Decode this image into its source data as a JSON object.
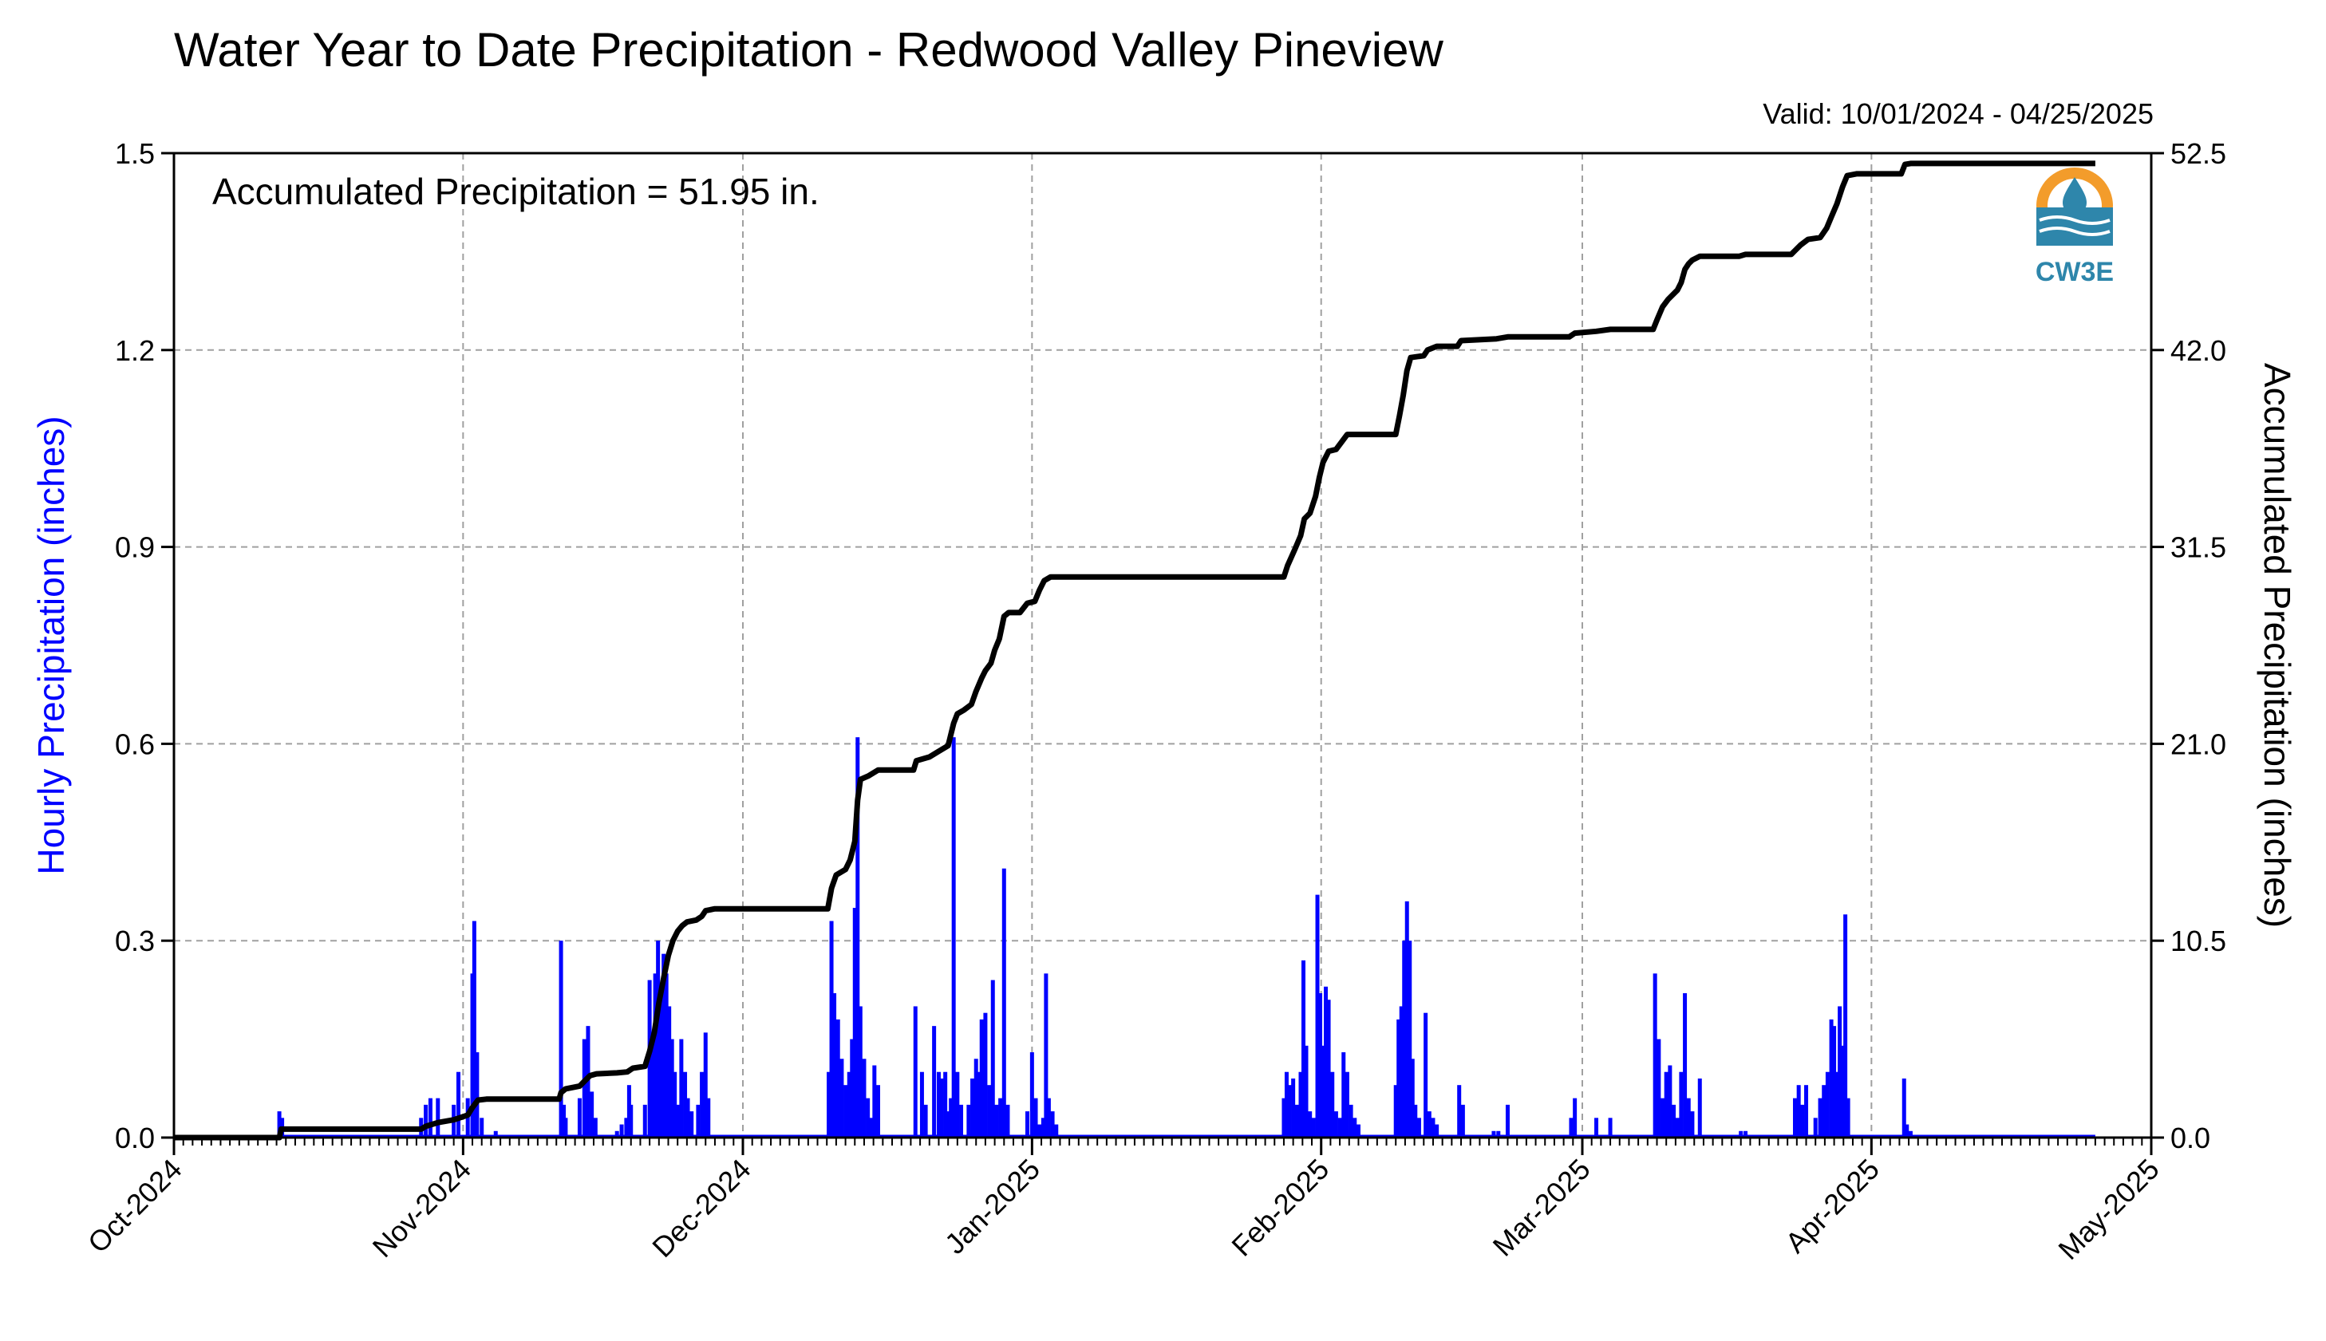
{
  "chart_data": {
    "type": "bar",
    "title": "Water Year to Date Precipitation - Redwood Valley Pineview",
    "valid_text": "Valid: 10/01/2024 - 04/25/2025",
    "annotation": "Accumulated Precipitation = 51.95 in.",
    "logo_text": "CW3E",
    "xlabel": "",
    "ylabel_left": "Hourly Precipitation (inches)",
    "ylabel_right": "Accumulated Precipitation (inches)",
    "x_range_days": [
      0,
      212
    ],
    "x_ticks": [
      {
        "day": 0,
        "label": "Oct-2024"
      },
      {
        "day": 31,
        "label": "Nov-2024"
      },
      {
        "day": 61,
        "label": "Dec-2024"
      },
      {
        "day": 92,
        "label": "Jan-2025"
      },
      {
        "day": 123,
        "label": "Feb-2025"
      },
      {
        "day": 151,
        "label": "Mar-2025"
      },
      {
        "day": 182,
        "label": "Apr-2025"
      },
      {
        "day": 212,
        "label": "May-2025"
      }
    ],
    "ylim_left": [
      0,
      1.5
    ],
    "yticks_left": [
      "0.0",
      "0.3",
      "0.6",
      "0.9",
      "1.2",
      "1.5"
    ],
    "ylim_right": [
      0,
      52.5
    ],
    "yticks_right": [
      "0.0",
      "10.5",
      "21.0",
      "31.5",
      "42.0",
      "52.5"
    ],
    "grid": true,
    "colors": {
      "hourly": "#0000ff",
      "accumulated": "#000000",
      "grid": "#a0a0a0",
      "left_label": "#0000ff",
      "logo_orange": "#f39c2b",
      "logo_blue": "#2e86ab"
    },
    "series": [
      {
        "name": "Hourly Precipitation",
        "kind": "bar",
        "points": [
          [
            11.3,
            0.04
          ],
          [
            11.6,
            0.03
          ],
          [
            26.5,
            0.03
          ],
          [
            27.0,
            0.05
          ],
          [
            27.5,
            0.06
          ],
          [
            28.3,
            0.06
          ],
          [
            30.0,
            0.05
          ],
          [
            30.5,
            0.1
          ],
          [
            31.5,
            0.06
          ],
          [
            32.0,
            0.25
          ],
          [
            32.2,
            0.33
          ],
          [
            32.5,
            0.13
          ],
          [
            33.0,
            0.03
          ],
          [
            34.5,
            0.01
          ],
          [
            41.5,
            0.3
          ],
          [
            41.8,
            0.05
          ],
          [
            42.0,
            0.03
          ],
          [
            43.5,
            0.06
          ],
          [
            44.0,
            0.15
          ],
          [
            44.4,
            0.17
          ],
          [
            44.8,
            0.07
          ],
          [
            45.2,
            0.03
          ],
          [
            47.5,
            0.01
          ],
          [
            48.0,
            0.02
          ],
          [
            48.5,
            0.03
          ],
          [
            48.8,
            0.08
          ],
          [
            49.0,
            0.05
          ],
          [
            50.5,
            0.05
          ],
          [
            51.0,
            0.24
          ],
          [
            51.3,
            0.15
          ],
          [
            51.6,
            0.25
          ],
          [
            51.9,
            0.3
          ],
          [
            52.2,
            0.22
          ],
          [
            52.5,
            0.28
          ],
          [
            52.8,
            0.25
          ],
          [
            53.1,
            0.2
          ],
          [
            53.4,
            0.15
          ],
          [
            53.7,
            0.1
          ],
          [
            54.0,
            0.05
          ],
          [
            54.4,
            0.15
          ],
          [
            54.8,
            0.1
          ],
          [
            55.1,
            0.06
          ],
          [
            55.5,
            0.04
          ],
          [
            56.2,
            0.05
          ],
          [
            56.6,
            0.1
          ],
          [
            57.0,
            0.16
          ],
          [
            57.3,
            0.06
          ],
          [
            70.2,
            0.1
          ],
          [
            70.5,
            0.33
          ],
          [
            70.8,
            0.22
          ],
          [
            71.2,
            0.18
          ],
          [
            71.6,
            0.12
          ],
          [
            72.0,
            0.08
          ],
          [
            72.4,
            0.1
          ],
          [
            72.7,
            0.15
          ],
          [
            73.0,
            0.35
          ],
          [
            73.3,
            0.61
          ],
          [
            73.6,
            0.2
          ],
          [
            74.0,
            0.12
          ],
          [
            74.4,
            0.06
          ],
          [
            74.8,
            0.03
          ],
          [
            75.1,
            0.11
          ],
          [
            75.5,
            0.08
          ],
          [
            79.5,
            0.2
          ],
          [
            80.2,
            0.1
          ],
          [
            80.6,
            0.05
          ],
          [
            81.5,
            0.17
          ],
          [
            82.0,
            0.1
          ],
          [
            82.3,
            0.09
          ],
          [
            82.7,
            0.1
          ],
          [
            83.0,
            0.04
          ],
          [
            83.3,
            0.06
          ],
          [
            83.6,
            0.61
          ],
          [
            84.0,
            0.1
          ],
          [
            84.4,
            0.05
          ],
          [
            85.2,
            0.05
          ],
          [
            85.6,
            0.09
          ],
          [
            86.0,
            0.12
          ],
          [
            86.3,
            0.1
          ],
          [
            86.6,
            0.18
          ],
          [
            87.0,
            0.19
          ],
          [
            87.4,
            0.08
          ],
          [
            87.8,
            0.24
          ],
          [
            88.2,
            0.05
          ],
          [
            88.6,
            0.06
          ],
          [
            89.0,
            0.41
          ],
          [
            89.4,
            0.05
          ],
          [
            91.5,
            0.04
          ],
          [
            92.0,
            0.13
          ],
          [
            92.4,
            0.06
          ],
          [
            92.8,
            0.02
          ],
          [
            93.2,
            0.03
          ],
          [
            93.5,
            0.25
          ],
          [
            93.8,
            0.06
          ],
          [
            94.2,
            0.04
          ],
          [
            94.6,
            0.02
          ],
          [
            119.0,
            0.06
          ],
          [
            119.3,
            0.1
          ],
          [
            119.6,
            0.08
          ],
          [
            120.0,
            0.09
          ],
          [
            120.4,
            0.05
          ],
          [
            120.8,
            0.1
          ],
          [
            121.1,
            0.27
          ],
          [
            121.4,
            0.14
          ],
          [
            121.8,
            0.04
          ],
          [
            122.2,
            0.03
          ],
          [
            122.6,
            0.37
          ],
          [
            122.9,
            0.22
          ],
          [
            123.2,
            0.14
          ],
          [
            123.5,
            0.23
          ],
          [
            123.8,
            0.21
          ],
          [
            124.2,
            0.1
          ],
          [
            124.6,
            0.04
          ],
          [
            125.0,
            0.03
          ],
          [
            125.4,
            0.13
          ],
          [
            125.8,
            0.1
          ],
          [
            126.2,
            0.05
          ],
          [
            126.6,
            0.03
          ],
          [
            127.0,
            0.02
          ],
          [
            131.0,
            0.08
          ],
          [
            131.3,
            0.18
          ],
          [
            131.6,
            0.2
          ],
          [
            131.9,
            0.3
          ],
          [
            132.2,
            0.36
          ],
          [
            132.5,
            0.3
          ],
          [
            132.8,
            0.12
          ],
          [
            133.1,
            0.05
          ],
          [
            133.5,
            0.03
          ],
          [
            134.2,
            0.19
          ],
          [
            134.6,
            0.04
          ],
          [
            135.0,
            0.03
          ],
          [
            135.4,
            0.02
          ],
          [
            137.8,
            0.08
          ],
          [
            138.2,
            0.05
          ],
          [
            141.5,
            0.01
          ],
          [
            142.0,
            0.01
          ],
          [
            143.0,
            0.05
          ],
          [
            149.8,
            0.03
          ],
          [
            150.2,
            0.06
          ],
          [
            152.5,
            0.03
          ],
          [
            154.0,
            0.03
          ],
          [
            158.8,
            0.25
          ],
          [
            159.2,
            0.15
          ],
          [
            159.6,
            0.06
          ],
          [
            160.0,
            0.1
          ],
          [
            160.4,
            0.11
          ],
          [
            160.8,
            0.05
          ],
          [
            161.2,
            0.03
          ],
          [
            161.6,
            0.1
          ],
          [
            162.0,
            0.22
          ],
          [
            162.4,
            0.06
          ],
          [
            162.8,
            0.04
          ],
          [
            163.6,
            0.09
          ],
          [
            168.0,
            0.01
          ],
          [
            168.5,
            0.01
          ],
          [
            173.8,
            0.06
          ],
          [
            174.2,
            0.08
          ],
          [
            174.6,
            0.05
          ],
          [
            175.0,
            0.08
          ],
          [
            176.0,
            0.03
          ],
          [
            176.5,
            0.06
          ],
          [
            176.9,
            0.08
          ],
          [
            177.3,
            0.1
          ],
          [
            177.7,
            0.18
          ],
          [
            178.0,
            0.17
          ],
          [
            178.3,
            0.1
          ],
          [
            178.6,
            0.2
          ],
          [
            178.9,
            0.14
          ],
          [
            179.2,
            0.34
          ],
          [
            179.5,
            0.06
          ],
          [
            185.5,
            0.09
          ],
          [
            185.8,
            0.02
          ],
          [
            186.2,
            0.01
          ]
        ]
      },
      {
        "name": "Accumulated Precipitation",
        "kind": "line",
        "points": [
          [
            0,
            0.0
          ],
          [
            11.3,
            0.0
          ],
          [
            11.5,
            0.45
          ],
          [
            26.5,
            0.45
          ],
          [
            27.0,
            0.6
          ],
          [
            28.3,
            0.8
          ],
          [
            30.0,
            0.95
          ],
          [
            31.5,
            1.2
          ],
          [
            32.0,
            1.6
          ],
          [
            32.6,
            2.0
          ],
          [
            33.5,
            2.05
          ],
          [
            41.3,
            2.05
          ],
          [
            41.5,
            2.4
          ],
          [
            42.0,
            2.6
          ],
          [
            43.5,
            2.75
          ],
          [
            44.0,
            3.0
          ],
          [
            44.6,
            3.3
          ],
          [
            45.3,
            3.4
          ],
          [
            47.5,
            3.45
          ],
          [
            48.6,
            3.5
          ],
          [
            49.2,
            3.7
          ],
          [
            50.5,
            3.8
          ],
          [
            51.0,
            4.6
          ],
          [
            51.5,
            5.6
          ],
          [
            52.0,
            7.2
          ],
          [
            52.5,
            8.5
          ],
          [
            53.0,
            9.7
          ],
          [
            53.5,
            10.5
          ],
          [
            54.0,
            11.0
          ],
          [
            54.5,
            11.3
          ],
          [
            55.0,
            11.5
          ],
          [
            56.0,
            11.6
          ],
          [
            56.6,
            11.8
          ],
          [
            57.0,
            12.1
          ],
          [
            58.0,
            12.2
          ],
          [
            70.1,
            12.2
          ],
          [
            70.5,
            13.3
          ],
          [
            71.0,
            14.0
          ],
          [
            72.0,
            14.3
          ],
          [
            72.5,
            14.8
          ],
          [
            73.0,
            15.8
          ],
          [
            73.3,
            18.0
          ],
          [
            73.6,
            19.1
          ],
          [
            74.5,
            19.3
          ],
          [
            75.5,
            19.6
          ],
          [
            79.3,
            19.6
          ],
          [
            79.6,
            20.1
          ],
          [
            81.0,
            20.3
          ],
          [
            82.0,
            20.6
          ],
          [
            83.0,
            20.9
          ],
          [
            83.6,
            22.1
          ],
          [
            84.0,
            22.6
          ],
          [
            84.7,
            22.8
          ],
          [
            85.5,
            23.1
          ],
          [
            86.0,
            23.8
          ],
          [
            86.6,
            24.5
          ],
          [
            87.0,
            24.9
          ],
          [
            87.6,
            25.3
          ],
          [
            88.0,
            26.0
          ],
          [
            88.5,
            26.6
          ],
          [
            89.0,
            27.8
          ],
          [
            89.5,
            28.0
          ],
          [
            90.7,
            28.0
          ],
          [
            91.5,
            28.5
          ],
          [
            92.3,
            28.6
          ],
          [
            92.8,
            29.2
          ],
          [
            93.3,
            29.7
          ],
          [
            94.0,
            29.9
          ],
          [
            119.0,
            29.9
          ],
          [
            119.4,
            30.5
          ],
          [
            120.2,
            31.4
          ],
          [
            120.8,
            32.1
          ],
          [
            121.2,
            33.0
          ],
          [
            121.8,
            33.3
          ],
          [
            122.4,
            34.2
          ],
          [
            122.8,
            35.2
          ],
          [
            123.2,
            36.0
          ],
          [
            123.8,
            36.6
          ],
          [
            124.6,
            36.7
          ],
          [
            125.2,
            37.1
          ],
          [
            125.8,
            37.5
          ],
          [
            131.0,
            37.5
          ],
          [
            131.4,
            38.5
          ],
          [
            131.8,
            39.6
          ],
          [
            132.2,
            40.9
          ],
          [
            132.6,
            41.6
          ],
          [
            134.0,
            41.7
          ],
          [
            134.4,
            42.0
          ],
          [
            135.4,
            42.2
          ],
          [
            137.6,
            42.2
          ],
          [
            138.0,
            42.5
          ],
          [
            141.8,
            42.6
          ],
          [
            143.0,
            42.7
          ],
          [
            149.6,
            42.7
          ],
          [
            150.2,
            42.9
          ],
          [
            152.5,
            43.0
          ],
          [
            154.0,
            43.1
          ],
          [
            158.6,
            43.1
          ],
          [
            159.0,
            43.6
          ],
          [
            159.6,
            44.3
          ],
          [
            160.2,
            44.7
          ],
          [
            161.2,
            45.2
          ],
          [
            161.6,
            45.6
          ],
          [
            162.0,
            46.3
          ],
          [
            162.4,
            46.6
          ],
          [
            162.8,
            46.8
          ],
          [
            163.6,
            47.0
          ],
          [
            167.8,
            47.0
          ],
          [
            168.5,
            47.1
          ],
          [
            173.4,
            47.1
          ],
          [
            173.8,
            47.3
          ],
          [
            174.4,
            47.6
          ],
          [
            175.2,
            47.9
          ],
          [
            176.5,
            48.0
          ],
          [
            177.2,
            48.5
          ],
          [
            177.7,
            49.1
          ],
          [
            178.3,
            49.8
          ],
          [
            178.9,
            50.7
          ],
          [
            179.4,
            51.3
          ],
          [
            180.4,
            51.4
          ],
          [
            185.2,
            51.4
          ],
          [
            185.6,
            51.9
          ],
          [
            186.2,
            51.95
          ],
          [
            206.0,
            51.95
          ]
        ]
      }
    ]
  }
}
